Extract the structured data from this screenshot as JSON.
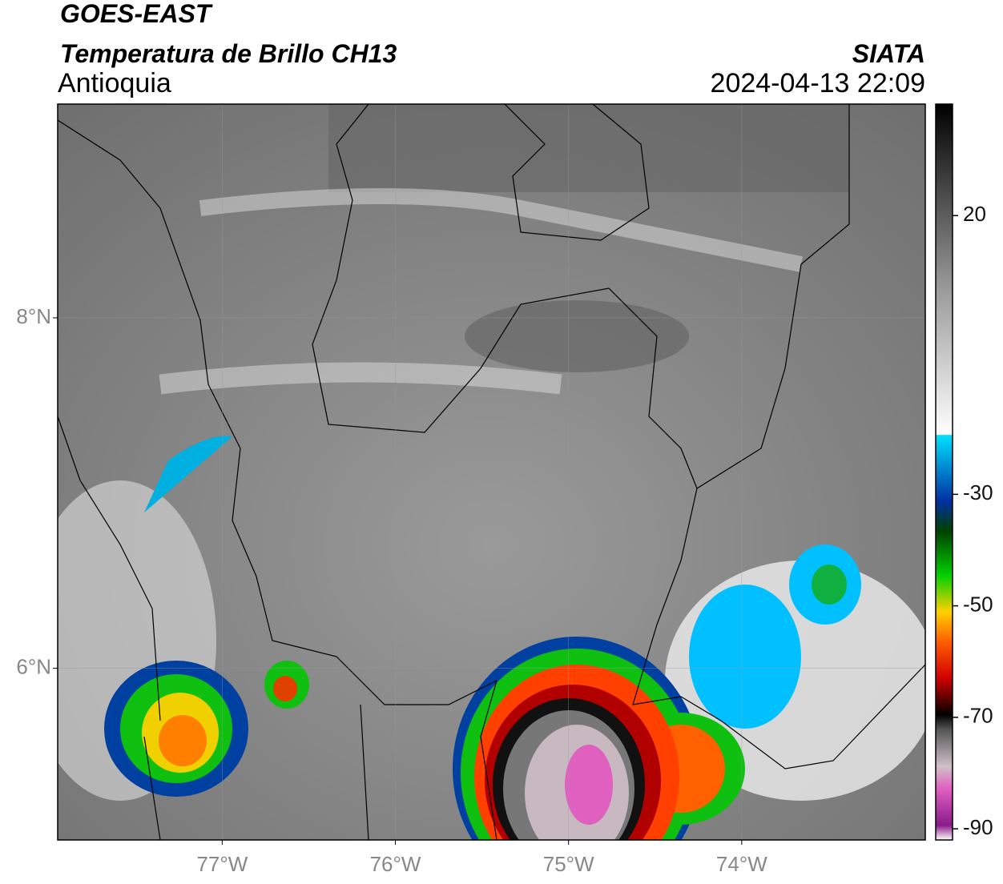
{
  "header": {
    "title": "GOES-EAST",
    "subtitle": "Temperatura de Brillo CH13",
    "region": "Antioquia",
    "source": "SIATA",
    "timestamp": "2024-04-13 22:09"
  },
  "map": {
    "xlim": [
      -77.95,
      -72.94
    ],
    "ylim": [
      5.02,
      9.22
    ],
    "xticks": [
      {
        "value": -77,
        "label": "77°W"
      },
      {
        "value": -76,
        "label": "76°W"
      },
      {
        "value": -75,
        "label": "75°W"
      },
      {
        "value": -74,
        "label": "74°W"
      }
    ],
    "yticks": [
      {
        "value": 8,
        "label": "8°N"
      },
      {
        "value": 6,
        "label": "6°N"
      }
    ]
  },
  "colorbar": {
    "lim": [
      -92,
      40
    ],
    "ticks": [
      20,
      -30,
      -50,
      -70,
      -90
    ]
  }
}
